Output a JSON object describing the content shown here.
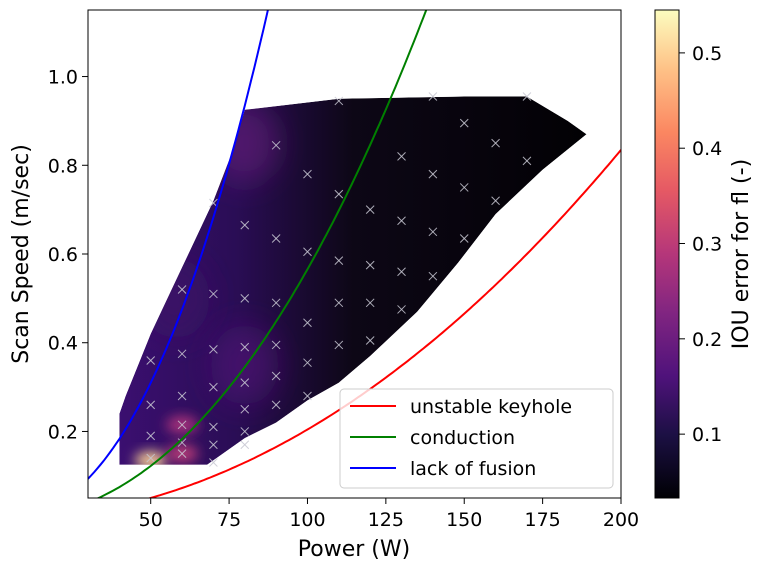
{
  "chart_data": {
    "type": "heatmap",
    "xlabel": "Power (W)",
    "ylabel": "Scan Speed (m/sec)",
    "xlim": [
      30,
      200
    ],
    "ylim": [
      0.05,
      1.15
    ],
    "x_ticks": [
      50,
      75,
      100,
      125,
      150,
      175,
      200
    ],
    "y_ticks": [
      0.2,
      0.4,
      0.6,
      0.8,
      1.0
    ],
    "x_tick_labels": [
      "50",
      "75",
      "100",
      "125",
      "150",
      "175",
      "200"
    ],
    "y_tick_labels": [
      "0.2",
      "0.4",
      "0.6",
      "0.8",
      "1.0"
    ],
    "colorbar": {
      "label": "IOU error for fl (-)",
      "colormap": "magma",
      "range": [
        0.033,
        0.545
      ],
      "ticks": [
        0.1,
        0.2,
        0.3,
        0.4,
        0.5
      ],
      "tick_labels": [
        "0.1",
        "0.2",
        "0.3",
        "0.4",
        "0.5"
      ]
    },
    "region_outline": [
      [
        40,
        0.125
      ],
      [
        40,
        0.24
      ],
      [
        42,
        0.28
      ],
      [
        50,
        0.42
      ],
      [
        60,
        0.57
      ],
      [
        70,
        0.72
      ],
      [
        76,
        0.83
      ],
      [
        80,
        0.925
      ],
      [
        110,
        0.95
      ],
      [
        150,
        0.955
      ],
      [
        170,
        0.955
      ],
      [
        183,
        0.9
      ],
      [
        189,
        0.87
      ],
      [
        175,
        0.79
      ],
      [
        160,
        0.69
      ],
      [
        148,
        0.58
      ],
      [
        135,
        0.47
      ],
      [
        120,
        0.37
      ],
      [
        110,
        0.31
      ],
      [
        100,
        0.27
      ],
      [
        90,
        0.22
      ],
      [
        80,
        0.185
      ],
      [
        72,
        0.145
      ],
      [
        68,
        0.125
      ]
    ],
    "hotspots": [
      {
        "x": 50,
        "y": 0.135,
        "value": 0.5
      },
      {
        "x": 60,
        "y": 0.215,
        "value": 0.28
      },
      {
        "x": 60,
        "y": 0.15,
        "value": 0.3
      },
      {
        "x": 80,
        "y": 0.35,
        "value": 0.17
      },
      {
        "x": 58,
        "y": 0.5,
        "value": 0.14
      },
      {
        "x": 80,
        "y": 0.85,
        "value": 0.2
      }
    ],
    "samples": {
      "marker": "x",
      "points": [
        [
          50,
          0.14
        ],
        [
          50,
          0.19
        ],
        [
          50,
          0.26
        ],
        [
          50,
          0.36
        ],
        [
          60,
          0.15
        ],
        [
          60,
          0.175
        ],
        [
          60,
          0.215
        ],
        [
          60,
          0.28
        ],
        [
          60,
          0.375
        ],
        [
          60,
          0.52
        ],
        [
          70,
          0.13
        ],
        [
          70,
          0.17
        ],
        [
          70,
          0.21
        ],
        [
          70,
          0.3
        ],
        [
          70,
          0.385
        ],
        [
          70,
          0.51
        ],
        [
          70,
          0.715
        ],
        [
          80,
          0.17
        ],
        [
          80,
          0.2
        ],
        [
          80,
          0.25
        ],
        [
          80,
          0.31
        ],
        [
          80,
          0.39
        ],
        [
          80,
          0.5
        ],
        [
          80,
          0.665
        ],
        [
          90,
          0.26
        ],
        [
          90,
          0.325
        ],
        [
          90,
          0.395
        ],
        [
          90,
          0.49
        ],
        [
          90,
          0.635
        ],
        [
          90,
          0.845
        ],
        [
          100,
          0.28
        ],
        [
          100,
          0.355
        ],
        [
          100,
          0.445
        ],
        [
          100,
          0.605
        ],
        [
          100,
          0.78
        ],
        [
          110,
          0.395
        ],
        [
          110,
          0.49
        ],
        [
          110,
          0.585
        ],
        [
          110,
          0.735
        ],
        [
          110,
          0.945
        ],
        [
          120,
          0.405
        ],
        [
          120,
          0.49
        ],
        [
          120,
          0.575
        ],
        [
          120,
          0.7
        ],
        [
          130,
          0.475
        ],
        [
          130,
          0.56
        ],
        [
          130,
          0.675
        ],
        [
          130,
          0.82
        ],
        [
          140,
          0.55
        ],
        [
          140,
          0.65
        ],
        [
          140,
          0.78
        ],
        [
          140,
          0.955
        ],
        [
          150,
          0.635
        ],
        [
          150,
          0.75
        ],
        [
          150,
          0.895
        ],
        [
          160,
          0.72
        ],
        [
          160,
          0.85
        ],
        [
          170,
          0.81
        ],
        [
          170,
          0.955
        ]
      ]
    },
    "series": [
      {
        "name": "unstable keyhole",
        "color": "#ff0000",
        "a": 1.78e-05,
        "b": 2.03
      },
      {
        "name": "conduction",
        "color": "#008000",
        "a": 2.15e-05,
        "b": 2.21
      },
      {
        "name": "lack of fusion",
        "color": "#0000ff",
        "a": 3.15e-05,
        "b": 2.35
      }
    ],
    "legend_position": "lower-right",
    "grid": false
  }
}
